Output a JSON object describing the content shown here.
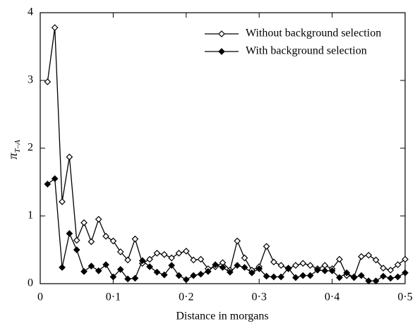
{
  "chart_data": {
    "type": "line",
    "x_label": "Distance in morgans",
    "y_label": "πT–A",
    "x": [
      0.01,
      0.02,
      0.03,
      0.04,
      0.05,
      0.06,
      0.07,
      0.08,
      0.09,
      0.1,
      0.11,
      0.12,
      0.13,
      0.14,
      0.15,
      0.16,
      0.17,
      0.18,
      0.19,
      0.2,
      0.21,
      0.22,
      0.23,
      0.24,
      0.25,
      0.26,
      0.27,
      0.28,
      0.29,
      0.3,
      0.31,
      0.32,
      0.33,
      0.34,
      0.35,
      0.36,
      0.37,
      0.38,
      0.39,
      0.4,
      0.41,
      0.42,
      0.43,
      0.44,
      0.45,
      0.46,
      0.47,
      0.48,
      0.49,
      0.5
    ],
    "series": [
      {
        "name": "Without background selection",
        "color": "#000000",
        "filled": false,
        "values": [
          2.98,
          3.78,
          1.21,
          1.87,
          0.64,
          0.9,
          0.62,
          0.95,
          0.7,
          0.63,
          0.47,
          0.35,
          0.66,
          0.3,
          0.36,
          0.45,
          0.43,
          0.38,
          0.45,
          0.48,
          0.35,
          0.36,
          0.22,
          0.25,
          0.31,
          0.2,
          0.63,
          0.38,
          0.2,
          0.25,
          0.55,
          0.32,
          0.27,
          0.22,
          0.27,
          0.3,
          0.27,
          0.22,
          0.27,
          0.22,
          0.36,
          0.12,
          0.1,
          0.4,
          0.42,
          0.35,
          0.23,
          0.2,
          0.28,
          0.36
        ]
      },
      {
        "name": "With background selection",
        "color": "#000000",
        "filled": true,
        "values": [
          1.47,
          1.55,
          0.24,
          0.74,
          0.5,
          0.18,
          0.26,
          0.19,
          0.28,
          0.1,
          0.21,
          0.07,
          0.08,
          0.34,
          0.25,
          0.17,
          0.13,
          0.27,
          0.12,
          0.06,
          0.12,
          0.14,
          0.18,
          0.28,
          0.24,
          0.17,
          0.27,
          0.24,
          0.16,
          0.22,
          0.11,
          0.1,
          0.1,
          0.23,
          0.09,
          0.12,
          0.12,
          0.2,
          0.19,
          0.19,
          0.09,
          0.16,
          0.09,
          0.12,
          0.04,
          0.04,
          0.11,
          0.08,
          0.1,
          0.16
        ]
      }
    ],
    "xlim": [
      0,
      0.5
    ],
    "ylim": [
      0,
      4
    ],
    "xticks": [
      0,
      {
        "value": 0.1,
        "label": "0·1"
      },
      {
        "value": 0.2,
        "label": "0·2"
      },
      {
        "value": 0.3,
        "label": "0·3"
      },
      {
        "value": 0.4,
        "label": "0·4"
      },
      {
        "value": 0.5,
        "label": "0·5"
      }
    ],
    "yticks": [
      0,
      1,
      2,
      3,
      4
    ],
    "legend": "top-right"
  }
}
